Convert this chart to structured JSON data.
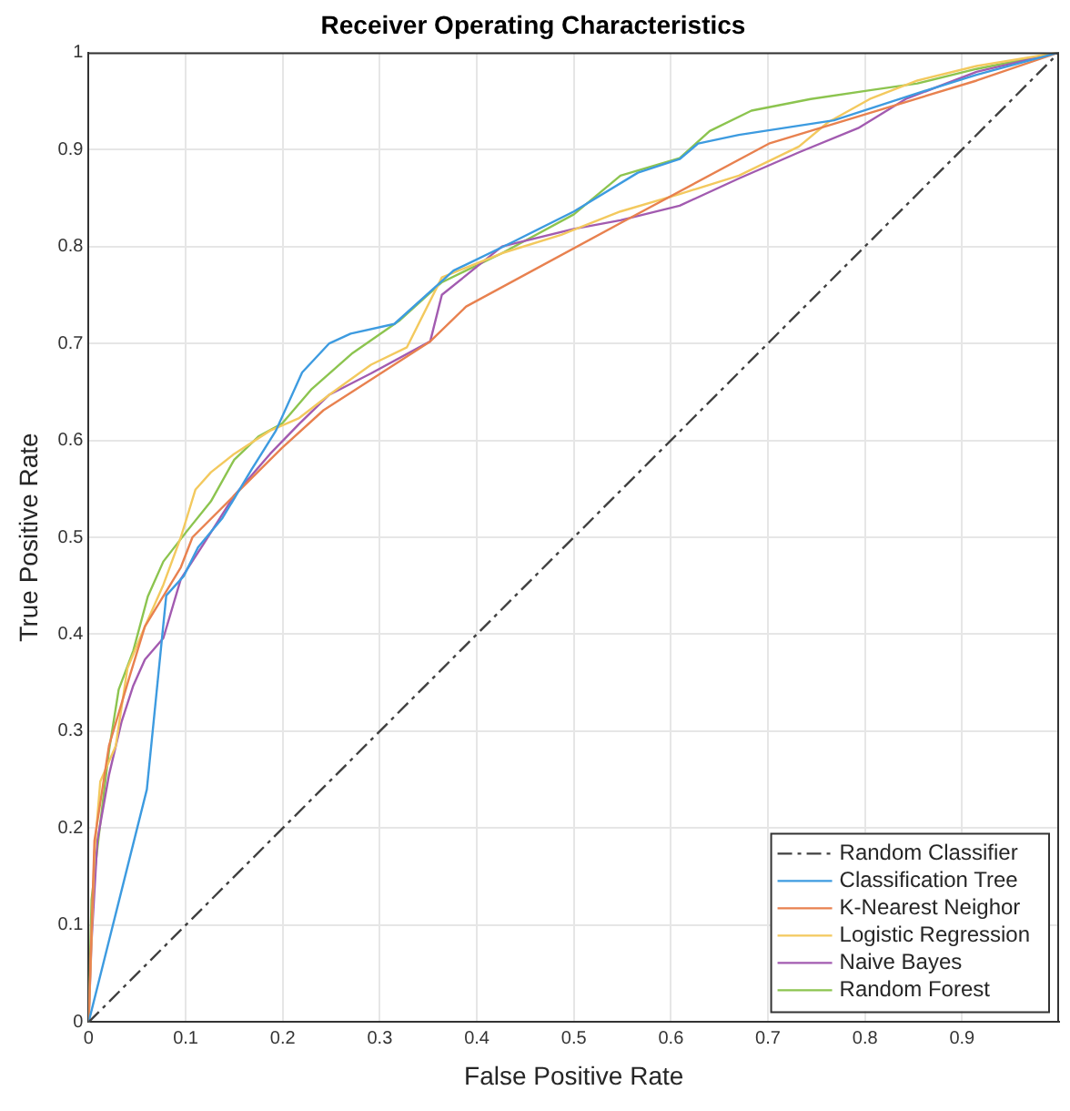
{
  "chart_data": {
    "type": "line",
    "title": "Receiver Operating Characteristics",
    "xlabel": "False Positive Rate",
    "ylabel": "True Positive Rate",
    "xlim": [
      0,
      1
    ],
    "ylim": [
      0,
      1
    ],
    "xticks": [
      0,
      0.1,
      0.2,
      0.3,
      0.4,
      0.5,
      0.6,
      0.7,
      0.8,
      0.9
    ],
    "yticks": [
      0,
      0.1,
      0.2,
      0.3,
      0.4,
      0.5,
      0.6,
      0.7,
      0.8,
      0.9,
      1
    ],
    "grid": true,
    "legend": "bottom right",
    "marker": "none",
    "series": [
      {
        "name": "Random Classifier",
        "color": "#404040",
        "line_style": "dashed",
        "x": [
          0,
          1
        ],
        "values": [
          0,
          1
        ]
      },
      {
        "name": "Classification Tree",
        "color": "#3d9be0",
        "x": [
          0,
          0.03,
          0.06,
          0.08,
          0.098,
          0.113,
          0.138,
          0.168,
          0.193,
          0.22,
          0.248,
          0.27,
          0.315,
          0.376,
          0.438,
          0.5,
          0.566,
          0.609,
          0.628,
          0.67,
          0.768,
          0.854,
          0.915,
          1
        ],
        "values": [
          0,
          0.12,
          0.24,
          0.44,
          0.46,
          0.49,
          0.52,
          0.57,
          0.61,
          0.67,
          0.7,
          0.71,
          0.72,
          0.775,
          0.805,
          0.836,
          0.876,
          0.89,
          0.906,
          0.915,
          0.93,
          0.958,
          0.977,
          1
        ]
      },
      {
        "name": "K-Nearest Neighor",
        "color": "#e8814f",
        "x": [
          0,
          0.006,
          0.021,
          0.043,
          0.058,
          0.095,
          0.107,
          0.15,
          0.199,
          0.242,
          0.352,
          0.389,
          0.548,
          0.701,
          0.915,
          1
        ],
        "values": [
          0,
          0.187,
          0.285,
          0.359,
          0.408,
          0.469,
          0.5,
          0.543,
          0.592,
          0.631,
          0.702,
          0.738,
          0.824,
          0.906,
          0.971,
          1
        ]
      },
      {
        "name": "Logistic Regression",
        "color": "#f3c95e",
        "x": [
          0,
          0.006,
          0.012,
          0.028,
          0.04,
          0.058,
          0.077,
          0.095,
          0.11,
          0.126,
          0.15,
          0.187,
          0.217,
          0.248,
          0.291,
          0.328,
          0.364,
          0.426,
          0.487,
          0.548,
          0.609,
          0.67,
          0.732,
          0.762,
          0.805,
          0.854,
          0.915,
          1
        ],
        "values": [
          0,
          0.175,
          0.248,
          0.285,
          0.365,
          0.408,
          0.451,
          0.5,
          0.549,
          0.567,
          0.586,
          0.61,
          0.623,
          0.647,
          0.678,
          0.696,
          0.768,
          0.793,
          0.812,
          0.836,
          0.854,
          0.873,
          0.903,
          0.928,
          0.952,
          0.971,
          0.986,
          1
        ]
      },
      {
        "name": "Naive Bayes",
        "color": "#a25bb0",
        "x": [
          0,
          0.003,
          0.009,
          0.021,
          0.034,
          0.046,
          0.058,
          0.077,
          0.095,
          0.119,
          0.15,
          0.187,
          0.217,
          0.248,
          0.291,
          0.352,
          0.364,
          0.426,
          0.5,
          0.548,
          0.609,
          0.67,
          0.732,
          0.793,
          0.842,
          0.915,
          1
        ],
        "values": [
          0,
          0.083,
          0.187,
          0.255,
          0.31,
          0.347,
          0.374,
          0.396,
          0.457,
          0.494,
          0.543,
          0.586,
          0.617,
          0.647,
          0.669,
          0.702,
          0.75,
          0.8,
          0.818,
          0.827,
          0.842,
          0.87,
          0.897,
          0.922,
          0.952,
          0.98,
          1
        ]
      },
      {
        "name": "Random Forest",
        "color": "#8cc44f",
        "x": [
          0,
          0.003,
          0.012,
          0.021,
          0.031,
          0.046,
          0.061,
          0.077,
          0.101,
          0.126,
          0.15,
          0.175,
          0.199,
          0.23,
          0.272,
          0.321,
          0.364,
          0.426,
          0.5,
          0.548,
          0.609,
          0.64,
          0.683,
          0.744,
          0.805,
          0.854,
          0.915,
          1
        ],
        "values": [
          0,
          0.126,
          0.205,
          0.28,
          0.343,
          0.383,
          0.439,
          0.475,
          0.506,
          0.537,
          0.58,
          0.604,
          0.617,
          0.653,
          0.69,
          0.724,
          0.763,
          0.793,
          0.833,
          0.873,
          0.891,
          0.919,
          0.94,
          0.952,
          0.961,
          0.968,
          0.983,
          1
        ]
      }
    ]
  }
}
